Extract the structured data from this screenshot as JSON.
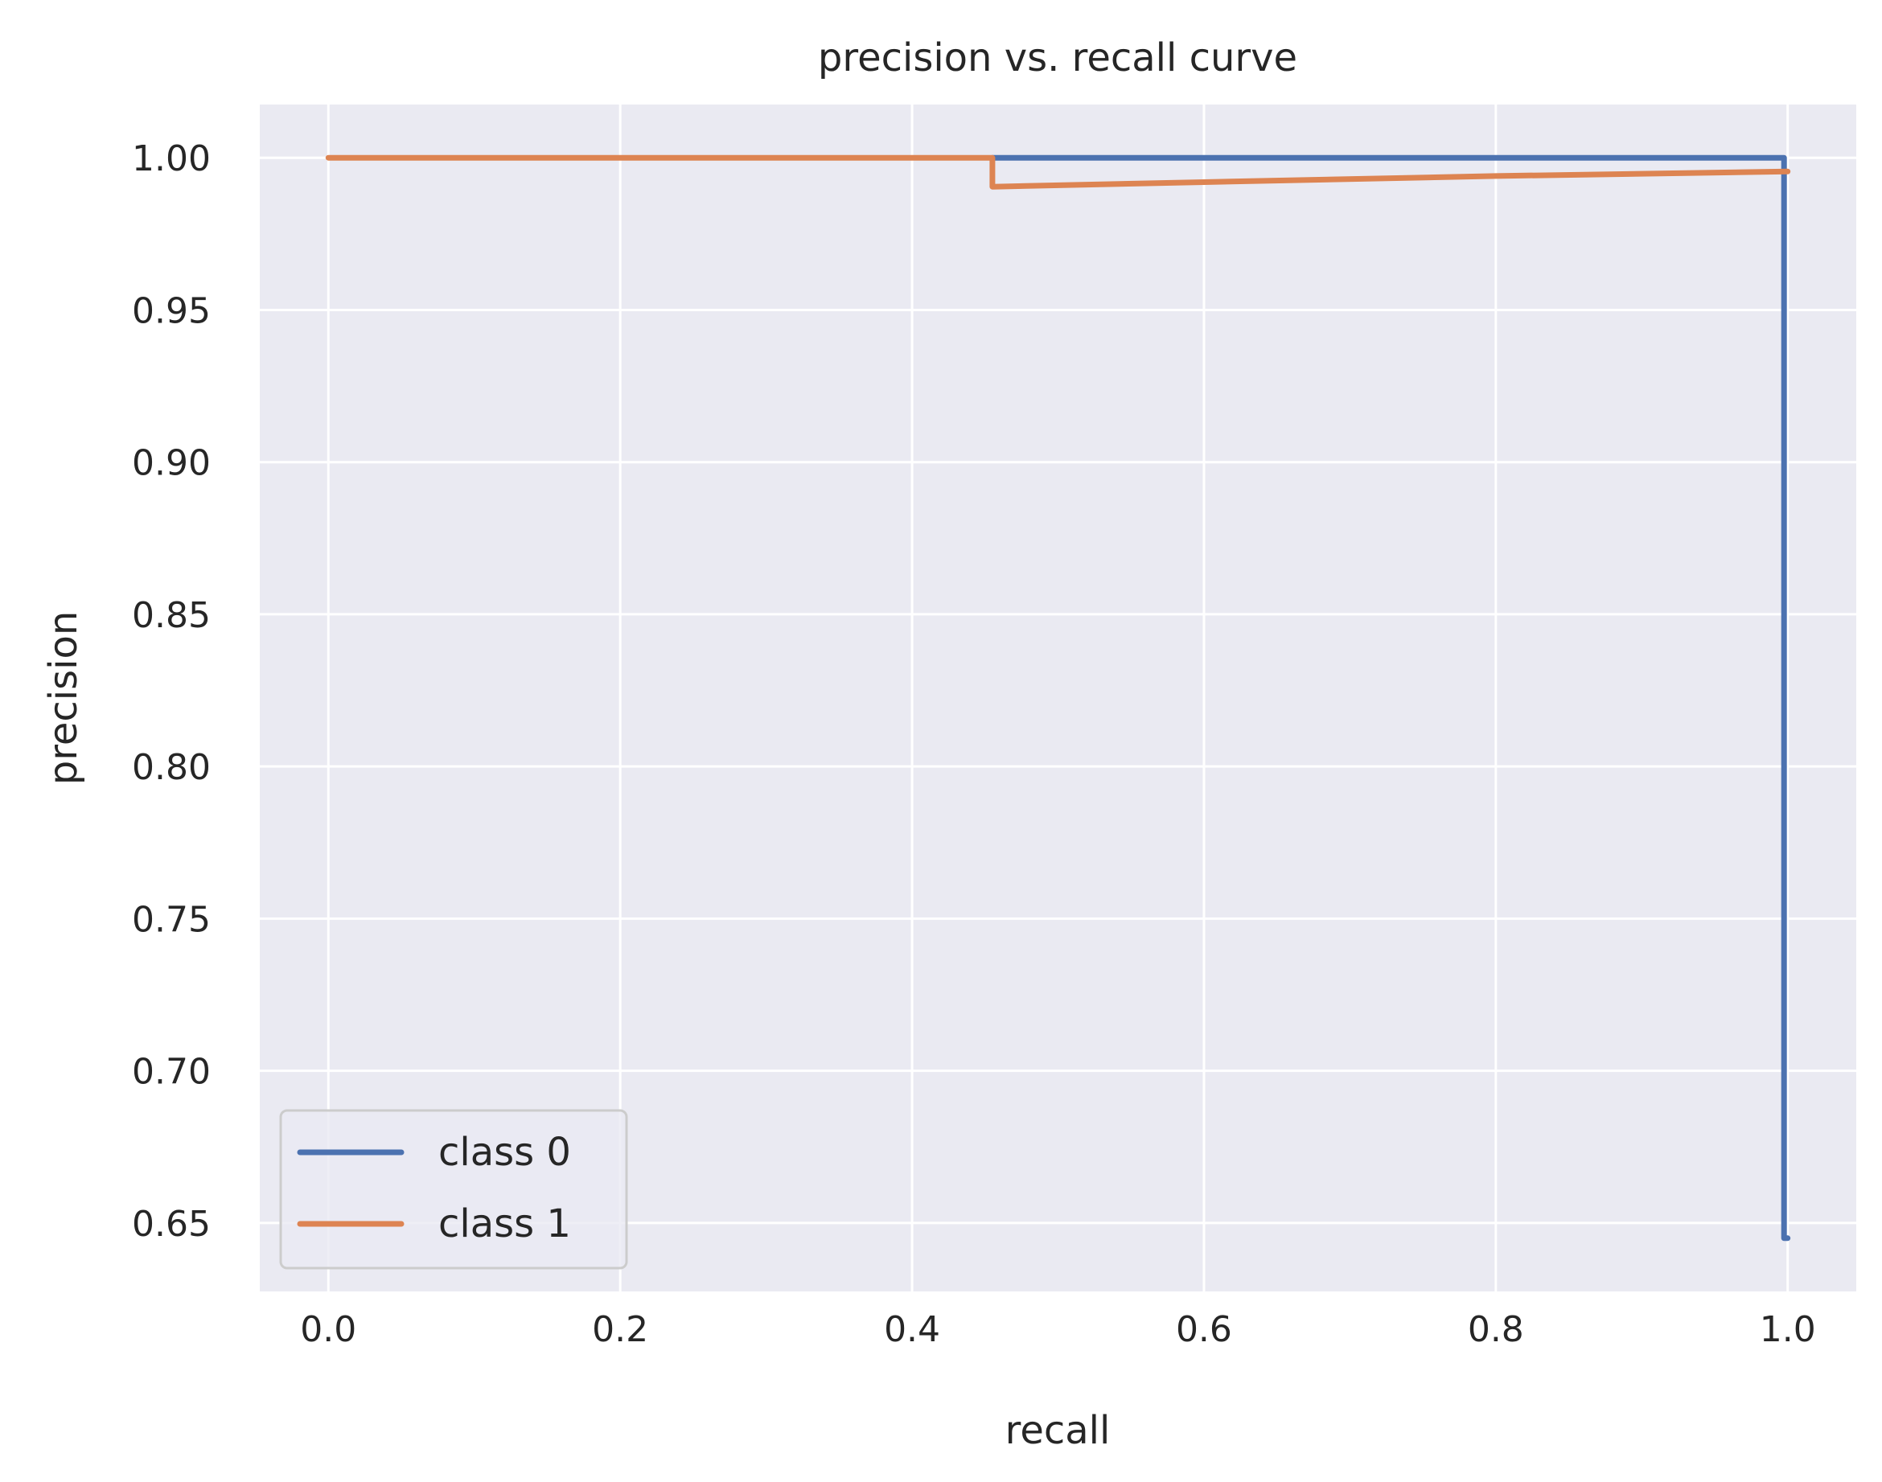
{
  "chart_data": {
    "type": "line",
    "title": "precision vs. recall curve",
    "xlabel": "recall",
    "ylabel": "precision",
    "xlim": [
      -0.047,
      1.047
    ],
    "ylim": [
      0.6275,
      1.0175
    ],
    "xticks": [
      0.0,
      0.2,
      0.4,
      0.6,
      0.8,
      1.0
    ],
    "xtick_labels": [
      "0.0",
      "0.2",
      "0.4",
      "0.6",
      "0.8",
      "1.0"
    ],
    "yticks": [
      0.65,
      0.7,
      0.75,
      0.8,
      0.85,
      0.9,
      0.95,
      1.0
    ],
    "ytick_labels": [
      "0.65",
      "0.70",
      "0.75",
      "0.80",
      "0.85",
      "0.90",
      "0.95",
      "1.00"
    ],
    "grid": true,
    "legend_position": "lower-left",
    "colors": {
      "background": "#eaeaf2",
      "grid": "#ffffff",
      "text": "#262626",
      "legend_border": "#cccccc"
    },
    "series": [
      {
        "name": "class 0",
        "color": "#4c72b0",
        "points": [
          [
            0.455,
            1.0
          ],
          [
            0.9975,
            1.0
          ],
          [
            0.9975,
            0.645
          ],
          [
            1.0,
            0.645
          ]
        ]
      },
      {
        "name": "class 1",
        "color": "#dd8452",
        "points": [
          [
            0.0,
            1.0
          ],
          [
            0.455,
            1.0
          ],
          [
            0.455,
            0.9905
          ],
          [
            0.6,
            0.992
          ],
          [
            0.8,
            0.994
          ],
          [
            1.0,
            0.9955
          ]
        ]
      }
    ]
  }
}
